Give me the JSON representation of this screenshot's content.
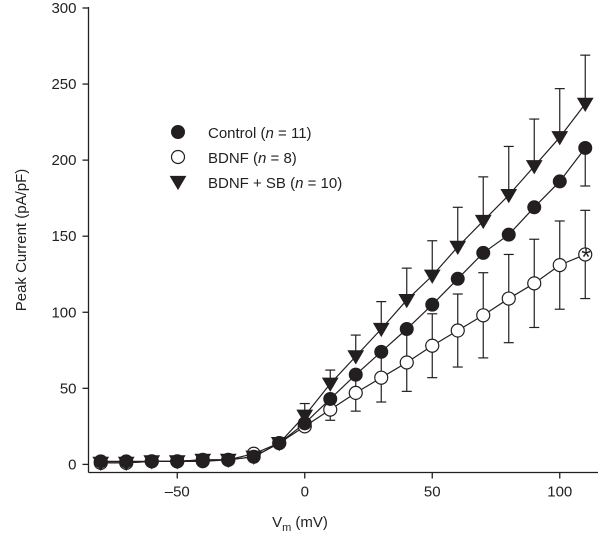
{
  "chart_data": {
    "type": "line",
    "xlabel": {
      "main": "V",
      "sub": "m",
      "rest": " (mV)"
    },
    "ylabel": "Peak Current (pA/pF)",
    "xlim": [
      -85,
      115
    ],
    "ylim": [
      -5,
      300
    ],
    "xticks": [
      -50,
      0,
      50,
      100
    ],
    "xtick_labels": [
      "–50",
      "0",
      "50",
      "100"
    ],
    "yticks": [
      0,
      50,
      100,
      150,
      200,
      250,
      300
    ],
    "ytick_labels": [
      "0",
      "50",
      "100",
      "150",
      "200",
      "250",
      "300"
    ],
    "grid": false,
    "legend_position": "upper-left",
    "annotation": "*",
    "x": [
      -80,
      -70,
      -60,
      -50,
      -40,
      -30,
      -20,
      -10,
      0,
      10,
      20,
      30,
      40,
      50,
      60,
      70,
      80,
      90,
      100,
      110
    ],
    "series": [
      {
        "name_parts": [
          "Control (",
          "n",
          " = 11)"
        ],
        "marker": "filled-circle",
        "values": [
          2,
          2,
          2,
          2,
          2,
          3,
          5,
          14,
          27,
          43,
          59,
          74,
          89,
          105,
          122,
          139,
          151,
          169,
          186,
          208
        ],
        "error": [
          0,
          0,
          0,
          0,
          0,
          0,
          0,
          0,
          0,
          0,
          0,
          0,
          0,
          0,
          0,
          0,
          0,
          0,
          0,
          25
        ],
        "error_direction": "down"
      },
      {
        "name_parts": [
          "BDNF (",
          "n",
          " = 8)"
        ],
        "marker": "open-circle",
        "values": [
          1,
          1,
          2,
          2,
          3,
          3,
          7,
          14,
          25,
          36,
          47,
          57,
          67,
          78,
          88,
          98,
          109,
          119,
          131,
          138
        ],
        "error": [
          0,
          0,
          0,
          0,
          0,
          0,
          0,
          0,
          0,
          7,
          12,
          16,
          19,
          21,
          24,
          28,
          29,
          29,
          29,
          29
        ],
        "error_direction": "both"
      },
      {
        "name_parts": [
          "BDNF + SB (",
          "n",
          " = 10)"
        ],
        "marker": "filled-triangle-down",
        "values": [
          1,
          1,
          2,
          2,
          3,
          3,
          5,
          14,
          32,
          53,
          71,
          89,
          108,
          124,
          143,
          160,
          177,
          196,
          215,
          237
        ],
        "error": [
          0,
          0,
          0,
          0,
          0,
          0,
          0,
          0,
          8,
          9,
          14,
          18,
          21,
          23,
          26,
          29,
          32,
          31,
          32,
          32
        ],
        "error_direction": "up"
      }
    ]
  }
}
